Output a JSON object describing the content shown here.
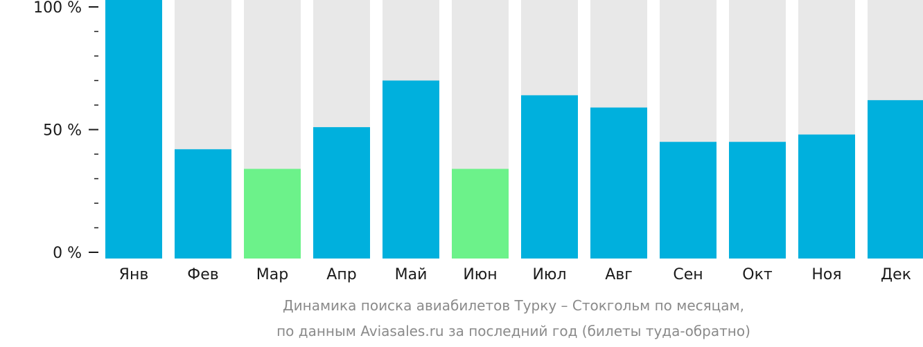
{
  "chart_data": {
    "type": "bar",
    "categories": [
      "Янв",
      "Фев",
      "Мар",
      "Апр",
      "Май",
      "Июн",
      "Июл",
      "Авг",
      "Сен",
      "Окт",
      "Ноя",
      "Дек"
    ],
    "values": [
      100,
      42,
      34,
      51,
      70,
      34,
      64,
      59,
      45,
      45,
      48,
      62
    ],
    "highlighted": [
      false,
      false,
      true,
      false,
      false,
      true,
      false,
      false,
      false,
      false,
      false,
      false
    ],
    "ylim": [
      0,
      100
    ],
    "yticks": [
      {
        "value": 100,
        "label": "100 %"
      },
      {
        "value": 50,
        "label": "50 %"
      },
      {
        "value": 0,
        "label": "0 %"
      }
    ],
    "minor_tick_step": 10,
    "xlabel": "",
    "ylabel": "",
    "grid": false,
    "legend": "none",
    "colors": {
      "bar": "#00b0dd",
      "highlight": "#6cf28a",
      "background_bar": "#e8e8e8",
      "axis_text": "#1a1a1a",
      "caption": "#8a8a8a"
    },
    "caption": {
      "line1": "Динамика поиска авиабилетов Турку – Стокгольм по месяцам,",
      "line2": "по данным Aviasales.ru за последний год (билеты туда-обратно)"
    }
  }
}
